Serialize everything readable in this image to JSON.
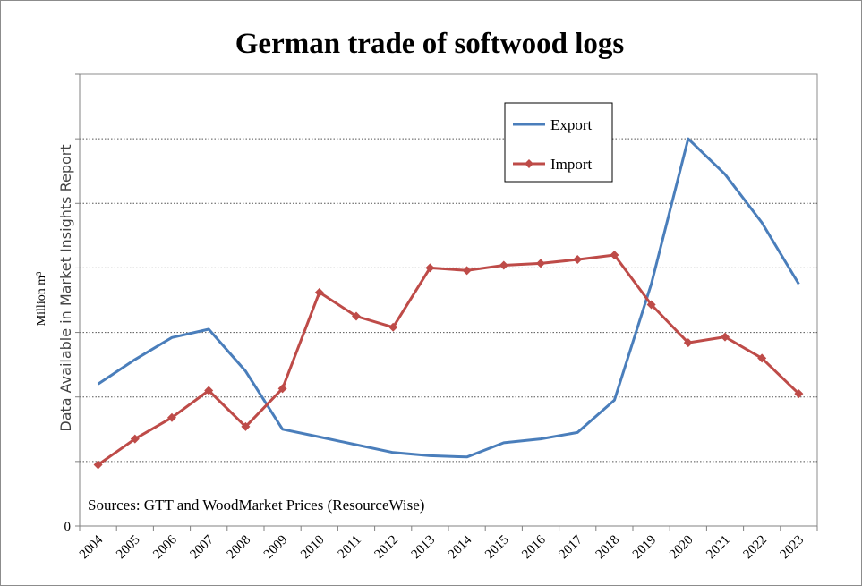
{
  "chart_data": {
    "type": "line",
    "title": "German trade of softwood logs",
    "ylabel": "Million m³",
    "watermark": "Data Available in Market Insights Report",
    "source": "Sources:  GTT and WoodMarket Prices (ResourceWise)",
    "y_tick_labels": [
      "0"
    ],
    "ylim": [
      0,
      7
    ],
    "y_gridlines": [
      1,
      2,
      3,
      4,
      5,
      6
    ],
    "grid": true,
    "legend_position": "top-right",
    "categories": [
      "2004",
      "2005",
      "2006",
      "2007",
      "2008",
      "2009",
      "2010",
      "2011",
      "2012",
      "2013",
      "2014",
      "2015",
      "2016",
      "2017",
      "2018",
      "2019",
      "2020",
      "2021",
      "2022",
      "2023"
    ],
    "series": [
      {
        "name": "Export",
        "color": "#4a7ebb",
        "marker": "none",
        "values": [
          2.2,
          2.58,
          2.92,
          3.05,
          2.4,
          1.5,
          1.38,
          1.26,
          1.14,
          1.09,
          1.07,
          1.29,
          1.35,
          1.45,
          1.95,
          3.75,
          6.0,
          5.45,
          4.7,
          3.75
        ]
      },
      {
        "name": "Import",
        "color": "#be4b48",
        "marker": "diamond",
        "values": [
          0.95,
          1.35,
          1.68,
          2.1,
          1.54,
          2.13,
          3.62,
          3.25,
          3.08,
          4.0,
          3.96,
          4.04,
          4.07,
          4.13,
          4.2,
          3.43,
          2.84,
          2.93,
          2.6,
          2.05
        ]
      }
    ]
  }
}
